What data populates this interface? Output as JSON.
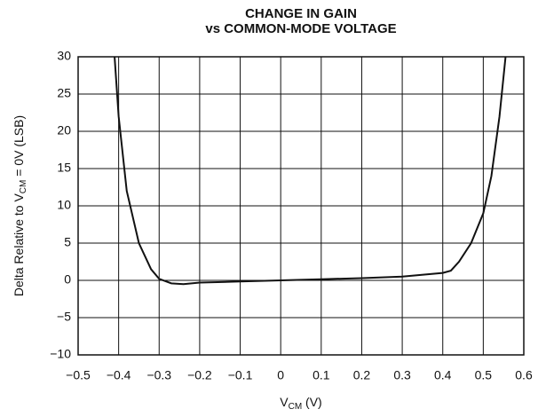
{
  "chart_data": {
    "type": "line",
    "title": [
      "CHANGE IN GAIN",
      "vs COMMON-MODE VOLTAGE"
    ],
    "xlabel": [
      "V",
      "CM",
      " (V)"
    ],
    "ylabel": [
      "Delta Relative to V",
      "CM",
      " = 0V (LSB)"
    ],
    "x": [
      -0.41,
      -0.4,
      -0.38,
      -0.35,
      -0.32,
      -0.3,
      -0.27,
      -0.24,
      -0.2,
      -0.1,
      0,
      0.1,
      0.2,
      0.3,
      0.4,
      0.42,
      0.44,
      0.47,
      0.5,
      0.52,
      0.54,
      0.555
    ],
    "values": [
      30,
      22,
      12,
      5,
      1.5,
      0.2,
      -0.4,
      -0.5,
      -0.3,
      -0.15,
      0,
      0.15,
      0.3,
      0.5,
      1.0,
      1.3,
      2.5,
      5,
      9,
      14,
      22,
      30
    ],
    "color": "#111111",
    "xlim": [
      -0.5,
      0.6
    ],
    "xticks": [
      {
        "value": -0.5,
        "label": "−0.5"
      },
      {
        "value": -0.4,
        "label": "−0.4"
      },
      {
        "value": -0.3,
        "label": "−0.3"
      },
      {
        "value": -0.2,
        "label": "−0.2"
      },
      {
        "value": -0.1,
        "label": "−0.1"
      },
      0,
      0.1,
      0.2,
      0.3,
      0.4,
      0.5,
      0.6
    ],
    "ylim": [
      -10,
      30
    ],
    "yticks": [
      {
        "value": -10,
        "label": "−10"
      },
      {
        "value": -5,
        "label": "−5"
      },
      0,
      5,
      10,
      15,
      20,
      25,
      30
    ],
    "grid": true
  }
}
